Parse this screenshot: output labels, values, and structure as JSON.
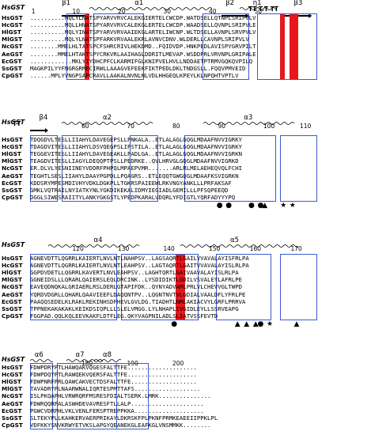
{
  "blocks": [
    {
      "title": "HsGST",
      "ss": [
        {
          "label": "β1",
          "kind": "arrow"
        },
        {
          "label": "α1",
          "kind": "helix"
        },
        {
          "label": "β2",
          "kind": "arrow"
        },
        {
          "label": "η1",
          "kind": "helix"
        },
        {
          "label": "β3",
          "kind": "arrow"
        }
      ],
      "turns": "TT   T.T TT",
      "numbers": [
        "1",
        "10",
        "20",
        "30",
        "40",
        "50"
      ],
      "rows": [
        {
          "name": "HsGST",
          "seq": "..........MQLYLNATSPYARVVRVCALEKGIERTELCWCDP.WATDSELLQTNPLSRIPVLV"
        },
        {
          "name": "HcGST",
          "seq": "..........MQLLHNATSPYARVVRVCALEKGLERTELCWCDP.WAADSELLQVNPLSRIPVLE"
        },
        {
          "name": "HlGST",
          "seq": "..........MQLYINATSPYARVVRVAAIEKGLARTELIWCNP.WLTDSELLAVNPLSRVPVLV"
        },
        {
          "name": "MlGST",
          "seq": "..........MQLYLNATSPFARKVRVAALEKRLAVNVCDNV.WLDERLLCAVNPLSRIPVLV"
        },
        {
          "name": "NcGST",
          "seq": "........MMELHLTATSPCFSHRCRIVLHEKDMD..FQIDVDP.HNKPEDLAVISPYGRVPILT"
        },
        {
          "name": "AeGST",
          "seq": "........MMELHTAKTSPYCRKVRLAAIHAGLDDRITLMEVAP.WSDDPRLVRVNPLGRIPALE"
        },
        {
          "name": "EcGST",
          "seq": "............MKLYIYDHCPFCLKARMIFGLKNIPVELHVLLNDDAETPTRMVGQKQVPILQ"
        },
        {
          "name": "SsGST",
          "seq": "MAGKPILYYFNGRGRMECIRWLLAAAGVEFEEKFIKTPEDLDKLTNDGSLL.FQQVPMVEID"
        },
        {
          "name": "CpGST",
          "seq": "......MPLYVNGPSAPCRAVLLAAKALNVNLNLVDLHHGEQLKPEYLKLNPQHTVPTLV"
        }
      ],
      "marks": []
    },
    {
      "title": "HsGST",
      "ss": [
        {
          "label": "β4",
          "kind": "arrow"
        },
        {
          "label": "α2",
          "kind": "helix"
        },
        {
          "label": "α3",
          "kind": "helix"
        }
      ],
      "turns": "TT",
      "numbers": [
        "60",
        "70",
        "80",
        "90",
        "100",
        "110"
      ],
      "rows": [
        {
          "name": "HsGST",
          "seq": "TDQGDVLTESLLIIAHYLDAVEGEPSLLPNKALA..ETLALAGLGQGLMDAAFNVVIGRKY"
        },
        {
          "name": "HcGST",
          "seq": "TDAGDVITESLLIIAHYLDSVQEGPSLIPSTILA..ETLALAGLGQGLMDAAFNVVIGRKY"
        },
        {
          "name": "HlGST",
          "seq": "TEGGEVITESLLIIAHYLDAVEGEAKLLPADLGA..ETLALAGLGQGLMDAAFNVVIGRKN"
        },
        {
          "name": "MlGST",
          "seq": "TEAGDVITESLLIAGYLDEQQPTPSLLPEDRKE..QVLHRVGLGQGLMDAAFNVVIGRKD"
        },
        {
          "name": "NcGST",
          "seq": "ER.DLVLYESNIINEYVDDRFPHPQLMPAEPVMR.......ARLRLMELAEHEQVQLFCHI"
        },
        {
          "name": "AeGST",
          "seq": "TEGHTLSESLIIAHYLDAAYPGPDLLPQAGRS..ETLEQQTGWGQGLMDAAFKSVIGRKN"
        },
        {
          "name": "EcGST",
          "seq": "KDDSRYMPESMDIVHYVDKLDGKPLLTGKRSPAIEEWLRKVNGYANKLLLPRFAKSAF"
        },
        {
          "name": "SsGST",
          "seq": "GMKLVQTRAILNYIATKYNLYGKDIKEKALIDMYIEGIADLGEMILLLPFSQPEEQD"
        },
        {
          "name": "CpGST",
          "seq": "DGGLSIWESRAIITYLANKYGKGSTLYPEDPKARALVDQRLYFDIGTLYQRFADYYYPQ"
        }
      ],
      "marks": [
        "●",
        "●",
        "●",
        "●",
        "▲",
        "★",
        "★"
      ]
    },
    {
      "title": "HsGST",
      "ss": [
        {
          "label": "α4",
          "kind": "helix"
        },
        {
          "label": "α5",
          "kind": "helix"
        }
      ],
      "turns": "",
      "numbers": [
        "120",
        "130",
        "140",
        "150",
        "160",
        "170"
      ],
      "rows": [
        {
          "name": "HsGST",
          "seq": "AGNEVDTTLQGRRLKAIERTLNVLNTLNAHPSV..LAGSAQRTLGAILVVAVALAYISFRLPA"
        },
        {
          "name": "HcGST",
          "seq": "AGNEVDTTLQGRRLKAIERTLNVLNTLEAHPSV..LAGTAQRTLGAITVVAVALAYISLRLPA"
        },
        {
          "name": "HlGST",
          "seq": "GGPDVDETLLQGRRLKAVERTLNVLEAHPSV..LAGHTQRTLGAIVAAVALAYISLRLPA"
        },
        {
          "name": "MlGST",
          "seq": "GGNEIDSLLLQRARLQAIERSLEQLDRCINK..LYSDIDIKTLGDILVSVALEYLAFRLPE"
        },
        {
          "name": "NcGST",
          "seq": "EAVEQDNQKALGRIAERLRSLDERLGTAPIFDK..QYNYADVAMLPRLVLCHEVVGLTWPD"
        },
        {
          "name": "AeGST",
          "seq": "YQRDVDGRLLQHARLQAAVIEEFLDAQQNTPV..LQGNTNVTVLGDIALVAALDFLYFRLPE"
        },
        {
          "name": "EcGST",
          "seq": "PAAQQSEDELKLRAKLREKINHSDFHEVLGVLDG.TIADHTLNMLAKIACVYLGRFLPRRVA"
        },
        {
          "name": "SsGST",
          "seq": "TPPNEKAKAKAKLKEIKDSIQPLLLSLELVMGG.LYLNHAPLIVGIDLEYLLSSRVEAPG"
        },
        {
          "name": "CpGST",
          "seq": "FGGPAD.QQLKQLEEVKAKFLDTFLEG.QKYVAGPNILADLSLIATVSSFEVTD"
        }
      ],
      "marks": [
        "●",
        "▲",
        "▲",
        "▲",
        "●",
        "★",
        "▲"
      ]
    },
    {
      "title": "HsGST",
      "ss": [
        {
          "label": "α6",
          "kind": "helix"
        },
        {
          "label": "α7",
          "kind": "helix"
        },
        {
          "label": "α8",
          "kind": "helix"
        }
      ],
      "turns": "",
      "numbers": [
        "180",
        "190",
        "200"
      ],
      "rows": [
        {
          "name": "HsGST",
          "seq": "FDWPDRYPTLHAWQAKVQGESFALTTFE...................."
        },
        {
          "name": "HcGST",
          "seq": "FDWPDQYPTLRAWQEKVQERSFALTTFE...................."
        },
        {
          "name": "HlGST",
          "seq": "FDWPNRFPRLQAWCAKVECTDSFALTTFE..................."
        },
        {
          "name": "MlGST",
          "seq": "TAVADRYPLNAARWNALIQRTESPMTTAFS..................."
        },
        {
          "name": "NcGST",
          "seq": "ISLPKQAPHLVRWRQRFMSRESFDIALTSERK.LMRK..............."
        },
        {
          "name": "AeGST",
          "seq": "FDWRQQRPALASWHDEVAVRESFTLLALP....................."
        },
        {
          "name": "EcGST",
          "seq": "PGWCVDRPHLVKLVENLFERSPTREPPKKA...................."
        },
        {
          "name": "SsGST",
          "seq": "SLTEKYPLLKAHKERVAERPRIKAYLDKRSKFPLPKNFPRMKEAEEIIPPKLPL"
        },
        {
          "name": "CpGST",
          "seq": "VDFKKYSNVKRWYETVKSLAPGYQEANEKGLEAFKGLVNSMMKK........"
        }
      ],
      "marks": []
    }
  ],
  "colors": {
    "conserved_fill": "#e8171c",
    "similar_text": "#e8171c",
    "box": "#3b5bd1"
  }
}
